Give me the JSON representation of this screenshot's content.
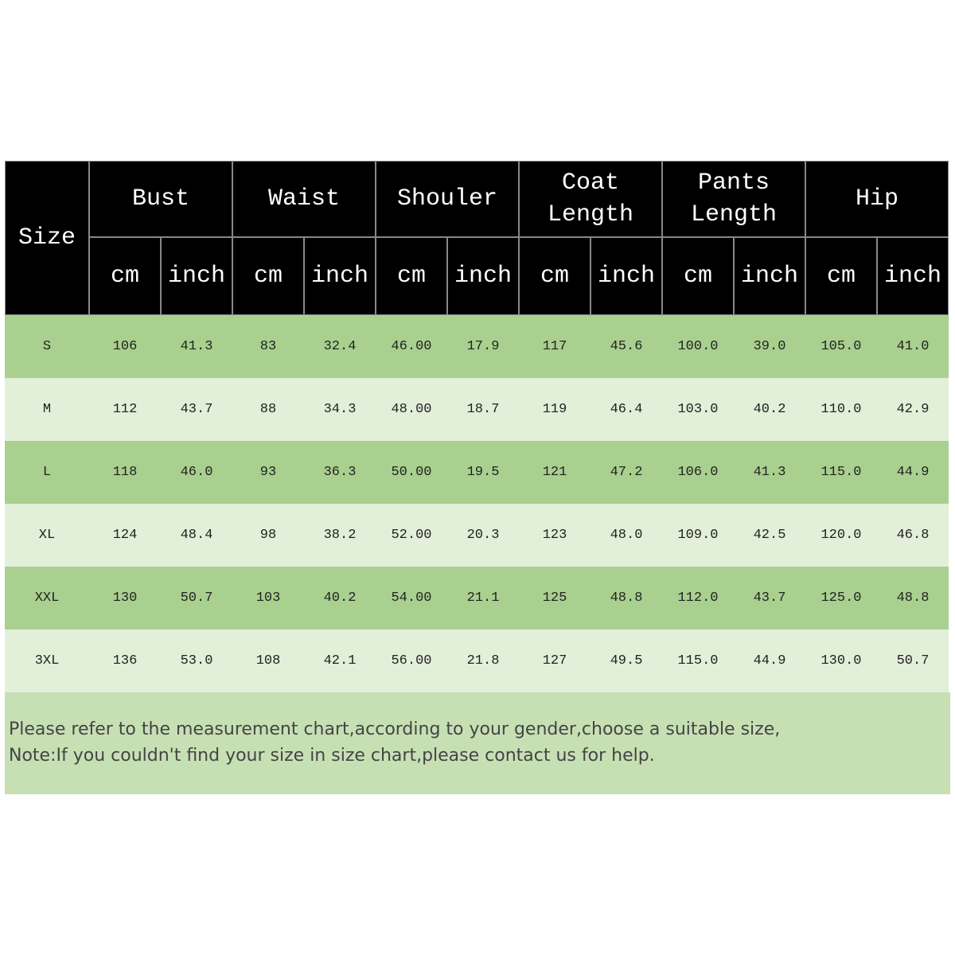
{
  "table": {
    "size_header": "Size",
    "groups": [
      {
        "name": "Bust",
        "units": [
          "cm",
          "inch"
        ]
      },
      {
        "name": "Waist",
        "units": [
          "cm",
          "inch"
        ]
      },
      {
        "name": "Shouler",
        "units": [
          "cm",
          "inch"
        ]
      },
      {
        "name": "Coat Length",
        "units": [
          "cm",
          "inch"
        ]
      },
      {
        "name": "Pants Length",
        "units": [
          "cm",
          "inch"
        ]
      },
      {
        "name": "Hip",
        "units": [
          "cm",
          "inch"
        ]
      }
    ],
    "rows": [
      [
        "S",
        "106",
        "41.3",
        "83",
        "32.4",
        "46.00",
        "17.9",
        "117",
        "45.6",
        "100.0",
        "39.0",
        "105.0",
        "41.0"
      ],
      [
        "M",
        "112",
        "43.7",
        "88",
        "34.3",
        "48.00",
        "18.7",
        "119",
        "46.4",
        "103.0",
        "40.2",
        "110.0",
        "42.9"
      ],
      [
        "L",
        "118",
        "46.0",
        "93",
        "36.3",
        "50.00",
        "19.5",
        "121",
        "47.2",
        "106.0",
        "41.3",
        "115.0",
        "44.9"
      ],
      [
        "XL",
        "124",
        "48.4",
        "98",
        "38.2",
        "52.00",
        "20.3",
        "123",
        "48.0",
        "109.0",
        "42.5",
        "120.0",
        "46.8"
      ],
      [
        "XXL",
        "130",
        "50.7",
        "103",
        "40.2",
        "54.00",
        "21.1",
        "125",
        "48.8",
        "112.0",
        "43.7",
        "125.0",
        "48.8"
      ],
      [
        "3XL",
        "136",
        "53.0",
        "108",
        "42.1",
        "56.00",
        "21.8",
        "127",
        "49.5",
        "115.0",
        "44.9",
        "130.0",
        "50.7"
      ]
    ]
  },
  "note": {
    "lines": [
      "Please refer to the measurement chart,according to your gender,choose a suitable size,",
      "Note:If you couldn't find your size in size chart,please contact us for help."
    ]
  }
}
